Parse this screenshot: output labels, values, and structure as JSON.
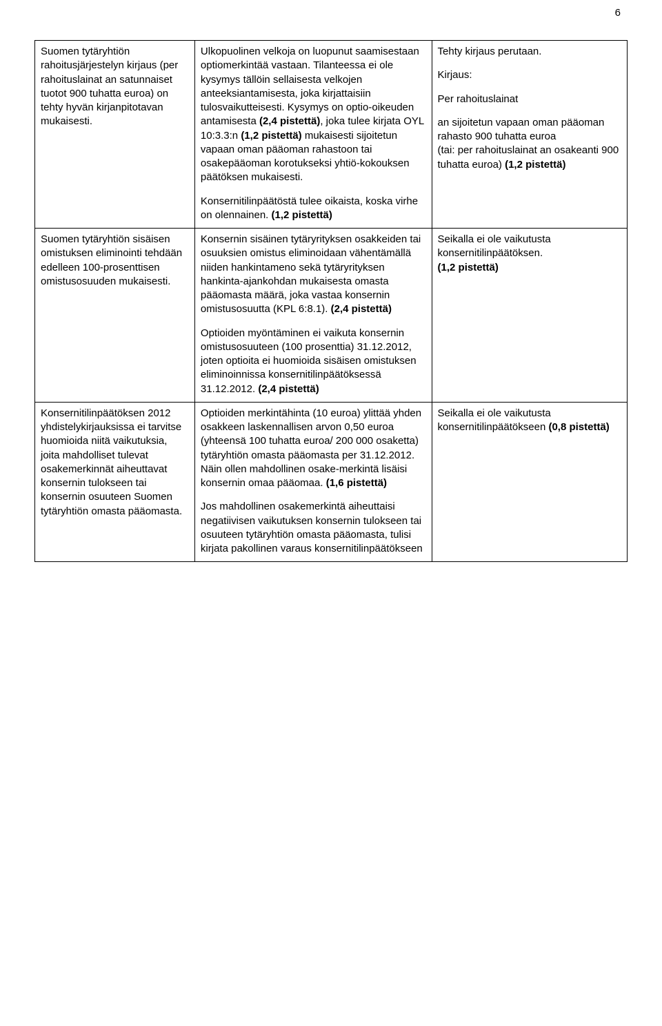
{
  "page_number": "6",
  "rows": [
    {
      "c1_p1": "Suomen tytäryhtiön rahoitusjärjestelyn kirjaus (per rahoituslainat an satunnaiset tuotot 900 tuhatta euroa) on tehty hyvän kirjanpitotavan mukaisesti.",
      "c2_p1a": "Ulkopuolinen velkoja on luopunut saamisestaan optiomerkintää vastaan. Tilanteessa ei ole kysymys tällöin sellaisesta velkojen anteeksiantamisesta, joka kirjattaisiin tulosvaikutteisesti. Kysymys on optio-oikeuden antamisesta ",
      "c2_p1b": "(2,4 pistettä)",
      "c2_p1c": ", joka tulee kirjata OYL 10:3.3:n ",
      "c2_p1d": "(1,2 pistettä)",
      "c2_p1e": " mukaisesti sijoitetun vapaan oman pääoman rahastoon tai osakepääoman korotukseksi yhtiö-kokouksen päätöksen mukaisesti.",
      "c2_p2a": "Konsernitilinpäätöstä tulee oikaista, koska virhe on olennainen. ",
      "c2_p2b": "(1,2 pistettä)",
      "c3_p1": "Tehty kirjaus perutaan.",
      "c3_p2": "Kirjaus:",
      "c3_p3": "Per rahoituslainat",
      "c3_p4a": "an sijoitetun vapaan oman pääoman rahasto 900 tuhatta euroa",
      "c3_p4b": "(tai: per rahoituslainat an osakeanti 900 tuhatta euroa) ",
      "c3_p4c": "(1,2 pistettä)"
    },
    {
      "c1_p1": "Suomen tytäryhtiön sisäisen omistuksen eliminointi tehdään edelleen 100-prosenttisen omistusosuuden mukaisesti.",
      "c2_p1a": "Konsernin sisäinen tytäryrityksen osakkeiden tai osuuksien omistus eliminoidaan vähentämällä niiden hankintameno sekä tytäryrityksen hankinta-ajankohdan mukaisesta omasta pääomasta määrä, joka vastaa konsernin omistusosuutta (KPL 6:8.1). ",
      "c2_p1b": "(2,4 pistettä)",
      "c2_p2a": "Optioiden myöntäminen ei vaikuta konsernin omistusosuuteen (100 prosenttia) 31.12.2012, joten optioita ei huomioida sisäisen omistuksen eliminoinnissa konsernitilinpäätöksessä 31.12.2012. ",
      "c2_p2b": "(2,4 pistettä)",
      "c3_p1a": "Seikalla ei ole vaikutusta konsernitilinpäätöksen.",
      "c3_p1b": "(1,2 pistettä)"
    },
    {
      "c1_p1": "Konsernitilinpäätöksen 2012 yhdistelykirjauksissa ei tarvitse huomioida niitä vaikutuksia, joita mahdolliset tulevat osakemerkinnät aiheuttavat konsernin tulokseen tai konsernin osuuteen Suomen tytäryhtiön omasta pääomasta.",
      "c2_p1a": "Optioiden merkintähinta (10 euroa) ylittää yhden osakkeen laskennallisen arvon 0,50 euroa (yhteensä 100 tuhatta euroa/ 200 000 osaketta) tytäryhtiön omasta pääomasta per 31.12.2012. Näin ollen mahdollinen osake-merkintä lisäisi konsernin omaa pääomaa. ",
      "c2_p1b": "(1,6 pistettä)",
      "c2_p2": "Jos mahdollinen osakemerkintä aiheuttaisi negatiivisen vaikutuksen konsernin tulokseen tai osuuteen tytäryhtiön omasta pääomasta, tulisi kirjata pakollinen varaus konsernitilinpäätökseen",
      "c3_p1a": "Seikalla ei ole vaikutusta konsernitilinpäätökseen ",
      "c3_p1b": "(0,8 pistettä)"
    }
  ]
}
